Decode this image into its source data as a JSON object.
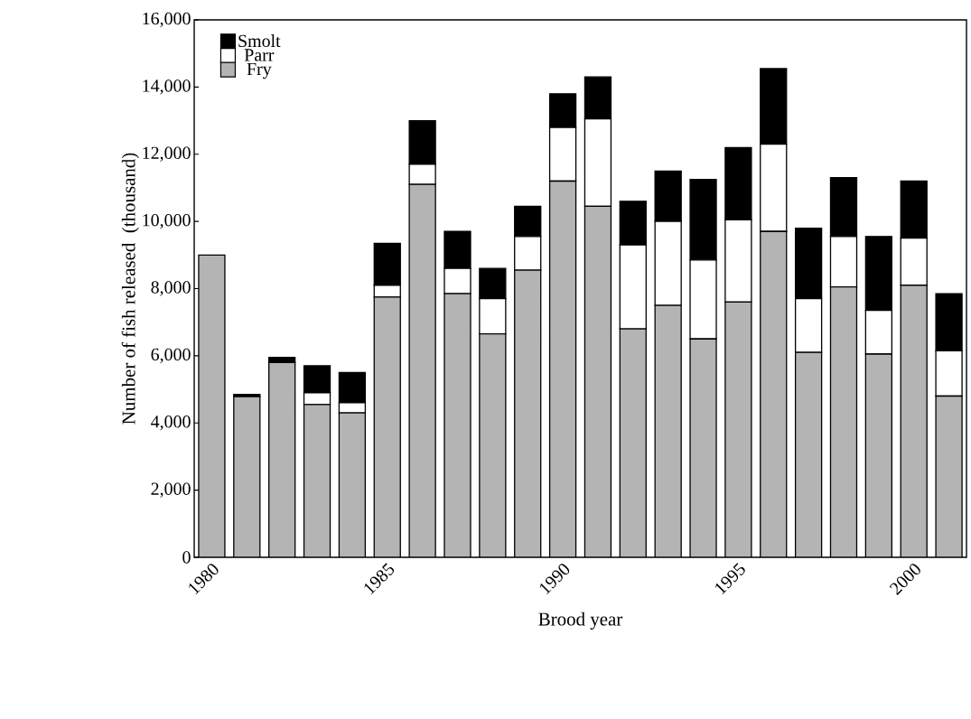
{
  "chart_data": {
    "type": "bar",
    "stacked": true,
    "xlabel": "Brood year",
    "ylabel": "Number of fish released  (thousand)",
    "categories": [
      "1980",
      null,
      null,
      null,
      null,
      "1985",
      null,
      null,
      null,
      null,
      "1990",
      null,
      null,
      null,
      null,
      "1995",
      null,
      null,
      null,
      null,
      "2000",
      null
    ],
    "series": [
      {
        "name": "Fry",
        "color": "#b4b4b4",
        "values": [
          9000,
          4780,
          5800,
          4550,
          4300,
          7750,
          11100,
          7850,
          6650,
          8550,
          11200,
          10450,
          6800,
          7500,
          6500,
          7600,
          9700,
          6100,
          8050,
          6050,
          8100,
          4800
        ]
      },
      {
        "name": "Parr",
        "color": "#ffffff",
        "values": [
          0,
          0,
          0,
          350,
          300,
          350,
          600,
          750,
          1050,
          1000,
          1600,
          2600,
          2500,
          2500,
          2350,
          2450,
          2600,
          1600,
          1500,
          1300,
          1400,
          1350
        ]
      },
      {
        "name": "Smolt",
        "color": "#000000",
        "values": [
          0,
          70,
          150,
          800,
          900,
          1250,
          1300,
          1100,
          900,
          900,
          1000,
          1250,
          1300,
          1500,
          2400,
          2150,
          2250,
          2100,
          1750,
          2200,
          1700,
          1700
        ]
      }
    ],
    "ylim": [
      0,
      16000
    ],
    "yticks": [
      0,
      {
        "value": 2000,
        "label": "2,000"
      },
      {
        "value": 4000,
        "label": "4,000"
      },
      {
        "value": 6000,
        "label": "6,000"
      },
      {
        "value": 8000,
        "label": "8,000"
      },
      {
        "value": 10000,
        "label": "10,000"
      },
      {
        "value": 12000,
        "label": "12,000"
      },
      {
        "value": 14000,
        "label": "14,000"
      },
      {
        "value": 16000,
        "label": "16,000"
      }
    ],
    "legend": "top left",
    "grid": false
  }
}
